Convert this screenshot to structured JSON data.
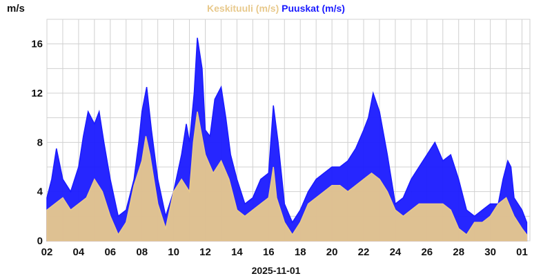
{
  "chart_data": {
    "type": "line",
    "title_parts": [
      {
        "text": "Keskituuli (m/s)",
        "color": "#e8c98c"
      },
      {
        "text": " "
      },
      {
        "text": "Puuskat (m/s)",
        "color": "#1a1aff"
      }
    ],
    "ylabel": "m/s",
    "xlabel": "2025-11-01",
    "ylim": [
      0,
      18
    ],
    "yticks": [
      0,
      4,
      8,
      12,
      16
    ],
    "xlim": [
      0,
      30.5
    ],
    "xticks": [
      {
        "x": 0,
        "label": "02"
      },
      {
        "x": 2,
        "label": "04"
      },
      {
        "x": 4,
        "label": "06"
      },
      {
        "x": 6,
        "label": "08"
      },
      {
        "x": 8,
        "label": "10"
      },
      {
        "x": 10,
        "label": "12"
      },
      {
        "x": 12,
        "label": "14"
      },
      {
        "x": 14,
        "label": "16"
      },
      {
        "x": 16,
        "label": "18"
      },
      {
        "x": 18,
        "label": "20"
      },
      {
        "x": 20,
        "label": "22"
      },
      {
        "x": 22,
        "label": "24"
      },
      {
        "x": 24,
        "label": "26"
      },
      {
        "x": 26,
        "label": "28"
      },
      {
        "x": 28,
        "label": "30"
      },
      {
        "x": 30,
        "label": "01"
      }
    ],
    "grid": true,
    "series": [
      {
        "name": "Keskituuli (m/s)",
        "color": "#e8c98c",
        "points": [
          [
            0,
            2.5
          ],
          [
            0.5,
            3
          ],
          [
            1,
            3.5
          ],
          [
            1.5,
            2.5
          ],
          [
            2,
            3
          ],
          [
            2.5,
            3.5
          ],
          [
            3,
            5
          ],
          [
            3.5,
            4
          ],
          [
            4,
            2
          ],
          [
            4.5,
            0.5
          ],
          [
            5,
            1.5
          ],
          [
            5.5,
            4.5
          ],
          [
            6,
            6.5
          ],
          [
            6.25,
            8.5
          ],
          [
            6.5,
            7
          ],
          [
            7,
            3
          ],
          [
            7.5,
            1
          ],
          [
            8,
            4
          ],
          [
            8.5,
            5
          ],
          [
            9,
            4
          ],
          [
            9.25,
            8
          ],
          [
            9.5,
            10.5
          ],
          [
            10,
            7
          ],
          [
            10.5,
            5.5
          ],
          [
            11,
            6.5
          ],
          [
            11.5,
            5
          ],
          [
            12,
            2.5
          ],
          [
            12.5,
            2
          ],
          [
            13,
            2.5
          ],
          [
            13.5,
            3
          ],
          [
            14,
            3.5
          ],
          [
            14.3,
            6
          ],
          [
            14.5,
            3.5
          ],
          [
            15,
            1.5
          ],
          [
            15.5,
            0.5
          ],
          [
            16,
            1.5
          ],
          [
            16.5,
            3
          ],
          [
            17,
            3.5
          ],
          [
            17.5,
            4
          ],
          [
            18,
            4.5
          ],
          [
            18.5,
            4.5
          ],
          [
            19,
            4
          ],
          [
            19.5,
            4.5
          ],
          [
            20,
            5
          ],
          [
            20.5,
            5.5
          ],
          [
            21,
            5
          ],
          [
            21.5,
            4
          ],
          [
            22,
            2.5
          ],
          [
            22.5,
            2
          ],
          [
            23,
            2.5
          ],
          [
            23.5,
            3
          ],
          [
            24,
            3
          ],
          [
            24.5,
            3
          ],
          [
            25,
            3
          ],
          [
            25.5,
            2.5
          ],
          [
            26,
            1
          ],
          [
            26.5,
            0.5
          ],
          [
            27,
            1.5
          ],
          [
            27.5,
            1.5
          ],
          [
            28,
            2
          ],
          [
            28.5,
            3
          ],
          [
            29,
            3.5
          ],
          [
            29.5,
            2
          ],
          [
            30,
            1
          ],
          [
            30.3,
            0.5
          ]
        ]
      },
      {
        "name": "Puuskat (m/s)",
        "color": "#1a1aff",
        "points": [
          [
            0,
            3.5
          ],
          [
            0.3,
            5
          ],
          [
            0.6,
            7.5
          ],
          [
            1,
            5
          ],
          [
            1.5,
            4
          ],
          [
            2,
            6
          ],
          [
            2.3,
            8.5
          ],
          [
            2.6,
            10.5
          ],
          [
            3,
            9.5
          ],
          [
            3.3,
            10.5
          ],
          [
            3.6,
            8
          ],
          [
            4,
            5
          ],
          [
            4.5,
            2
          ],
          [
            5,
            2.5
          ],
          [
            5.5,
            5
          ],
          [
            5.8,
            8
          ],
          [
            6,
            10.5
          ],
          [
            6.3,
            12.5
          ],
          [
            6.6,
            9
          ],
          [
            7,
            5
          ],
          [
            7.5,
            2
          ],
          [
            8,
            4
          ],
          [
            8.5,
            7
          ],
          [
            8.8,
            9.5
          ],
          [
            9,
            8
          ],
          [
            9.3,
            12
          ],
          [
            9.5,
            16.5
          ],
          [
            9.8,
            14
          ],
          [
            10,
            9
          ],
          [
            10.3,
            8.5
          ],
          [
            10.6,
            11.5
          ],
          [
            11,
            12.5
          ],
          [
            11.3,
            10
          ],
          [
            11.6,
            7
          ],
          [
            12,
            5
          ],
          [
            12.5,
            3
          ],
          [
            13,
            3.5
          ],
          [
            13.5,
            5
          ],
          [
            14,
            5.5
          ],
          [
            14.3,
            11
          ],
          [
            14.6,
            8
          ],
          [
            15,
            3
          ],
          [
            15.5,
            1.5
          ],
          [
            16,
            2.5
          ],
          [
            16.5,
            4
          ],
          [
            17,
            5
          ],
          [
            17.5,
            5.5
          ],
          [
            18,
            6
          ],
          [
            18.5,
            6
          ],
          [
            19,
            6.5
          ],
          [
            19.5,
            7.5
          ],
          [
            20,
            9
          ],
          [
            20.3,
            10
          ],
          [
            20.6,
            12
          ],
          [
            21,
            10.5
          ],
          [
            21.5,
            7
          ],
          [
            22,
            3
          ],
          [
            22.5,
            3.5
          ],
          [
            23,
            5
          ],
          [
            23.5,
            6
          ],
          [
            24,
            7
          ],
          [
            24.5,
            8
          ],
          [
            25,
            6.5
          ],
          [
            25.5,
            7
          ],
          [
            26,
            5
          ],
          [
            26.5,
            2.5
          ],
          [
            27,
            2
          ],
          [
            27.5,
            2.5
          ],
          [
            28,
            3
          ],
          [
            28.5,
            3
          ],
          [
            28.8,
            5
          ],
          [
            29.1,
            6.5
          ],
          [
            29.3,
            6
          ],
          [
            29.5,
            3.5
          ],
          [
            30,
            2.5
          ],
          [
            30.3,
            1.5
          ]
        ]
      }
    ]
  }
}
